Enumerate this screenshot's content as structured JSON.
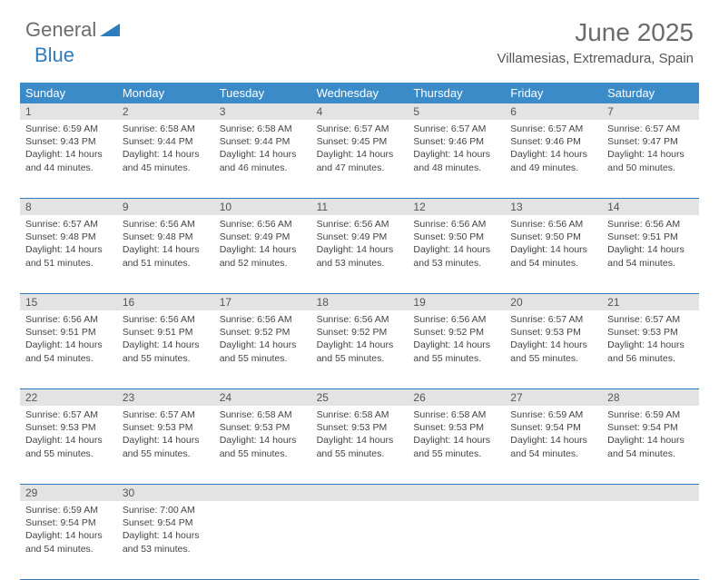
{
  "logo": {
    "text_general": "General",
    "text_blue": "Blue"
  },
  "title": "June 2025",
  "location": "Villamesias, Extremadura, Spain",
  "colors": {
    "header_bg": "#3b8bc9",
    "daynum_bg": "#e3e3e3",
    "border": "#2f7bbf",
    "logo_gray": "#6b6b6b",
    "logo_blue": "#2f7bbf"
  },
  "day_headers": [
    "Sunday",
    "Monday",
    "Tuesday",
    "Wednesday",
    "Thursday",
    "Friday",
    "Saturday"
  ],
  "weeks": [
    [
      {
        "num": "1",
        "sunrise": "Sunrise: 6:59 AM",
        "sunset": "Sunset: 9:43 PM",
        "daylight1": "Daylight: 14 hours",
        "daylight2": "and 44 minutes."
      },
      {
        "num": "2",
        "sunrise": "Sunrise: 6:58 AM",
        "sunset": "Sunset: 9:44 PM",
        "daylight1": "Daylight: 14 hours",
        "daylight2": "and 45 minutes."
      },
      {
        "num": "3",
        "sunrise": "Sunrise: 6:58 AM",
        "sunset": "Sunset: 9:44 PM",
        "daylight1": "Daylight: 14 hours",
        "daylight2": "and 46 minutes."
      },
      {
        "num": "4",
        "sunrise": "Sunrise: 6:57 AM",
        "sunset": "Sunset: 9:45 PM",
        "daylight1": "Daylight: 14 hours",
        "daylight2": "and 47 minutes."
      },
      {
        "num": "5",
        "sunrise": "Sunrise: 6:57 AM",
        "sunset": "Sunset: 9:46 PM",
        "daylight1": "Daylight: 14 hours",
        "daylight2": "and 48 minutes."
      },
      {
        "num": "6",
        "sunrise": "Sunrise: 6:57 AM",
        "sunset": "Sunset: 9:46 PM",
        "daylight1": "Daylight: 14 hours",
        "daylight2": "and 49 minutes."
      },
      {
        "num": "7",
        "sunrise": "Sunrise: 6:57 AM",
        "sunset": "Sunset: 9:47 PM",
        "daylight1": "Daylight: 14 hours",
        "daylight2": "and 50 minutes."
      }
    ],
    [
      {
        "num": "8",
        "sunrise": "Sunrise: 6:57 AM",
        "sunset": "Sunset: 9:48 PM",
        "daylight1": "Daylight: 14 hours",
        "daylight2": "and 51 minutes."
      },
      {
        "num": "9",
        "sunrise": "Sunrise: 6:56 AM",
        "sunset": "Sunset: 9:48 PM",
        "daylight1": "Daylight: 14 hours",
        "daylight2": "and 51 minutes."
      },
      {
        "num": "10",
        "sunrise": "Sunrise: 6:56 AM",
        "sunset": "Sunset: 9:49 PM",
        "daylight1": "Daylight: 14 hours",
        "daylight2": "and 52 minutes."
      },
      {
        "num": "11",
        "sunrise": "Sunrise: 6:56 AM",
        "sunset": "Sunset: 9:49 PM",
        "daylight1": "Daylight: 14 hours",
        "daylight2": "and 53 minutes."
      },
      {
        "num": "12",
        "sunrise": "Sunrise: 6:56 AM",
        "sunset": "Sunset: 9:50 PM",
        "daylight1": "Daylight: 14 hours",
        "daylight2": "and 53 minutes."
      },
      {
        "num": "13",
        "sunrise": "Sunrise: 6:56 AM",
        "sunset": "Sunset: 9:50 PM",
        "daylight1": "Daylight: 14 hours",
        "daylight2": "and 54 minutes."
      },
      {
        "num": "14",
        "sunrise": "Sunrise: 6:56 AM",
        "sunset": "Sunset: 9:51 PM",
        "daylight1": "Daylight: 14 hours",
        "daylight2": "and 54 minutes."
      }
    ],
    [
      {
        "num": "15",
        "sunrise": "Sunrise: 6:56 AM",
        "sunset": "Sunset: 9:51 PM",
        "daylight1": "Daylight: 14 hours",
        "daylight2": "and 54 minutes."
      },
      {
        "num": "16",
        "sunrise": "Sunrise: 6:56 AM",
        "sunset": "Sunset: 9:51 PM",
        "daylight1": "Daylight: 14 hours",
        "daylight2": "and 55 minutes."
      },
      {
        "num": "17",
        "sunrise": "Sunrise: 6:56 AM",
        "sunset": "Sunset: 9:52 PM",
        "daylight1": "Daylight: 14 hours",
        "daylight2": "and 55 minutes."
      },
      {
        "num": "18",
        "sunrise": "Sunrise: 6:56 AM",
        "sunset": "Sunset: 9:52 PM",
        "daylight1": "Daylight: 14 hours",
        "daylight2": "and 55 minutes."
      },
      {
        "num": "19",
        "sunrise": "Sunrise: 6:56 AM",
        "sunset": "Sunset: 9:52 PM",
        "daylight1": "Daylight: 14 hours",
        "daylight2": "and 55 minutes."
      },
      {
        "num": "20",
        "sunrise": "Sunrise: 6:57 AM",
        "sunset": "Sunset: 9:53 PM",
        "daylight1": "Daylight: 14 hours",
        "daylight2": "and 55 minutes."
      },
      {
        "num": "21",
        "sunrise": "Sunrise: 6:57 AM",
        "sunset": "Sunset: 9:53 PM",
        "daylight1": "Daylight: 14 hours",
        "daylight2": "and 56 minutes."
      }
    ],
    [
      {
        "num": "22",
        "sunrise": "Sunrise: 6:57 AM",
        "sunset": "Sunset: 9:53 PM",
        "daylight1": "Daylight: 14 hours",
        "daylight2": "and 55 minutes."
      },
      {
        "num": "23",
        "sunrise": "Sunrise: 6:57 AM",
        "sunset": "Sunset: 9:53 PM",
        "daylight1": "Daylight: 14 hours",
        "daylight2": "and 55 minutes."
      },
      {
        "num": "24",
        "sunrise": "Sunrise: 6:58 AM",
        "sunset": "Sunset: 9:53 PM",
        "daylight1": "Daylight: 14 hours",
        "daylight2": "and 55 minutes."
      },
      {
        "num": "25",
        "sunrise": "Sunrise: 6:58 AM",
        "sunset": "Sunset: 9:53 PM",
        "daylight1": "Daylight: 14 hours",
        "daylight2": "and 55 minutes."
      },
      {
        "num": "26",
        "sunrise": "Sunrise: 6:58 AM",
        "sunset": "Sunset: 9:53 PM",
        "daylight1": "Daylight: 14 hours",
        "daylight2": "and 55 minutes."
      },
      {
        "num": "27",
        "sunrise": "Sunrise: 6:59 AM",
        "sunset": "Sunset: 9:54 PM",
        "daylight1": "Daylight: 14 hours",
        "daylight2": "and 54 minutes."
      },
      {
        "num": "28",
        "sunrise": "Sunrise: 6:59 AM",
        "sunset": "Sunset: 9:54 PM",
        "daylight1": "Daylight: 14 hours",
        "daylight2": "and 54 minutes."
      }
    ],
    [
      {
        "num": "29",
        "sunrise": "Sunrise: 6:59 AM",
        "sunset": "Sunset: 9:54 PM",
        "daylight1": "Daylight: 14 hours",
        "daylight2": "and 54 minutes."
      },
      {
        "num": "30",
        "sunrise": "Sunrise: 7:00 AM",
        "sunset": "Sunset: 9:54 PM",
        "daylight1": "Daylight: 14 hours",
        "daylight2": "and 53 minutes."
      },
      null,
      null,
      null,
      null,
      null
    ]
  ]
}
